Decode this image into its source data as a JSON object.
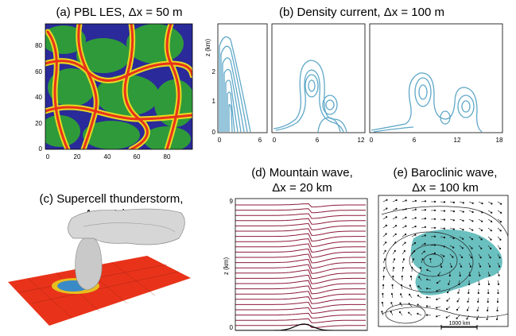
{
  "panels": {
    "a": {
      "title": "(a) PBL LES, Δx = 50 m",
      "y_ticks": [
        "80",
        "60",
        "40",
        "20",
        "0"
      ],
      "x_ticks": [
        "0",
        "20",
        "40",
        "60",
        "80"
      ]
    },
    "b": {
      "title": "(b) Density current, Δx = 100 m",
      "y_label": "z (km)",
      "y_ticks": [
        "2",
        "1",
        "0"
      ],
      "x_ticks_1": [
        "0",
        "6"
      ],
      "x_ticks_2": [
        "0",
        "6",
        "12"
      ],
      "x_ticks_3": [
        "0",
        "6",
        "12",
        "18"
      ]
    },
    "c": {
      "title_line1": "(c) Supercell thunderstorm,",
      "title_line2": "Δx = 1 km"
    },
    "d": {
      "title_line1": "(d) Mountain wave,",
      "title_line2": "Δx = 20 km",
      "y_label": "z (km)",
      "y_ticks": [
        "9",
        "0"
      ]
    },
    "e": {
      "title_line1": "(e) Baroclinic wave,",
      "title_line2": "Δx = 100 km",
      "scale_label": "1000 km"
    }
  },
  "colors": {
    "contour_blue": "#5fa8c8",
    "wave_line": "#8b1a3a",
    "baroclinic_fill": "#5ab8b8",
    "storm_ground": "#e8331a"
  }
}
